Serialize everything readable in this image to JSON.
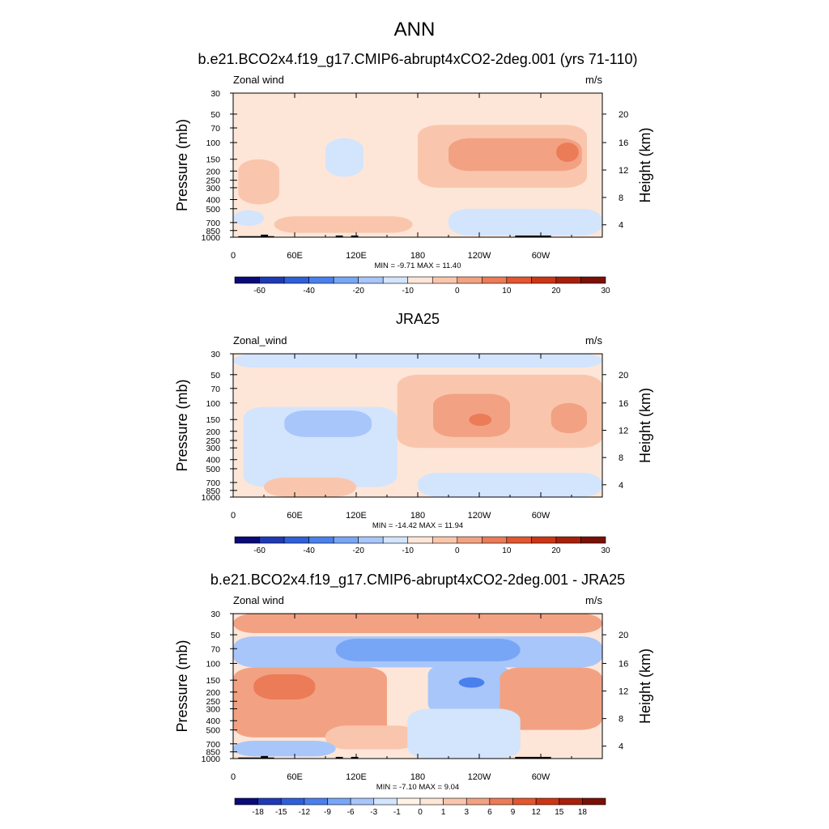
{
  "figure": {
    "title": "ANN"
  },
  "chart_data": [
    {
      "type": "heatmap",
      "title": "b.e21.BCO2x4.f19_g17.CMIP6-abrupt4xCO2-2deg.001 (yrs 71-110)",
      "left_string": "Zonal wind",
      "right_string": "m/s",
      "ylabel": "Pressure (mb)",
      "ylabel_right": "Height (km)",
      "x_ticks": [
        "0",
        "60E",
        "120E",
        "180",
        "120W",
        "60W"
      ],
      "x_range_deg": [
        0,
        355
      ],
      "y_ticks": [
        "30",
        "50",
        "70",
        "100",
        "150",
        "200",
        "250",
        "300",
        "400",
        "500",
        "700",
        "850",
        "1000"
      ],
      "y_range_mb": [
        30,
        1000
      ],
      "height_ticks": [
        "20",
        "16",
        "12",
        "8",
        "4"
      ],
      "stats": "MIN = -9.71  MAX = 11.40",
      "min": -9.71,
      "max": 11.4,
      "colorbar_labels": [
        "-60",
        "-40",
        "-20",
        "-10",
        "0",
        "10",
        "20",
        "30"
      ],
      "colorbar_colors": [
        "#0a0a78",
        "#1f3ab5",
        "#2f5fd9",
        "#4a80ee",
        "#78a6f7",
        "#a8c6fa",
        "#d3e4fd",
        "#fde6d8",
        "#f9c6ad",
        "#f2a283",
        "#ec7b58",
        "#e3562f",
        "#cc3515",
        "#a81f0a",
        "#7b1005"
      ],
      "bins": [
        -70,
        -60,
        -50,
        -40,
        -30,
        -20,
        -15,
        -10,
        -5,
        0,
        5,
        10,
        15,
        20,
        25,
        30
      ]
    },
    {
      "type": "heatmap",
      "title": "JRA25",
      "left_string": "Zonal_wind",
      "right_string": "m/s",
      "ylabel": "Pressure (mb)",
      "ylabel_right": "Height (km)",
      "x_ticks": [
        "0",
        "60E",
        "120E",
        "180",
        "120W",
        "60W"
      ],
      "x_range_deg": [
        0,
        355
      ],
      "y_ticks": [
        "30",
        "50",
        "70",
        "100",
        "150",
        "200",
        "250",
        "300",
        "400",
        "500",
        "700",
        "850",
        "1000"
      ],
      "y_range_mb": [
        30,
        1000
      ],
      "height_ticks": [
        "20",
        "16",
        "12",
        "8",
        "4"
      ],
      "stats": "MIN = -14.42  MAX =  11.94",
      "min": -14.42,
      "max": 11.94,
      "colorbar_labels": [
        "-60",
        "-40",
        "-20",
        "-10",
        "0",
        "10",
        "20",
        "30"
      ],
      "colorbar_colors": [
        "#0a0a78",
        "#1f3ab5",
        "#2f5fd9",
        "#4a80ee",
        "#78a6f7",
        "#a8c6fa",
        "#d3e4fd",
        "#fde6d8",
        "#f9c6ad",
        "#f2a283",
        "#ec7b58",
        "#e3562f",
        "#cc3515",
        "#a81f0a",
        "#7b1005"
      ]
    },
    {
      "type": "heatmap",
      "title": "b.e21.BCO2x4.f19_g17.CMIP6-abrupt4xCO2-2deg.001 - JRA25",
      "left_string": "Zonal wind",
      "right_string": "m/s",
      "ylabel": "Pressure (mb)",
      "ylabel_right": "Height (km)",
      "x_ticks": [
        "0",
        "60E",
        "120E",
        "180",
        "120W",
        "60W"
      ],
      "x_range_deg": [
        0,
        355
      ],
      "y_ticks": [
        "30",
        "50",
        "70",
        "100",
        "150",
        "200",
        "250",
        "300",
        "400",
        "500",
        "700",
        "850",
        "1000"
      ],
      "y_range_mb": [
        30,
        1000
      ],
      "height_ticks": [
        "20",
        "16",
        "12",
        "8",
        "4"
      ],
      "stats": "MIN = -7.10  MAX =  9.04",
      "min": -7.1,
      "max": 9.04,
      "colorbar_labels": [
        "-18",
        "-15",
        "-12",
        "-9",
        "-6",
        "-3",
        "-1",
        "0",
        "1",
        "3",
        "6",
        "9",
        "12",
        "15",
        "18"
      ],
      "colorbar_colors": [
        "#0a0a78",
        "#1f3ab5",
        "#2f5fd9",
        "#4a80ee",
        "#78a6f7",
        "#a8c6fa",
        "#d3e4fd",
        "#fff2e6",
        "#fde6d8",
        "#f9c6ad",
        "#f2a283",
        "#ec7b58",
        "#e3562f",
        "#cc3515",
        "#a81f0a",
        "#7b1005"
      ]
    }
  ]
}
